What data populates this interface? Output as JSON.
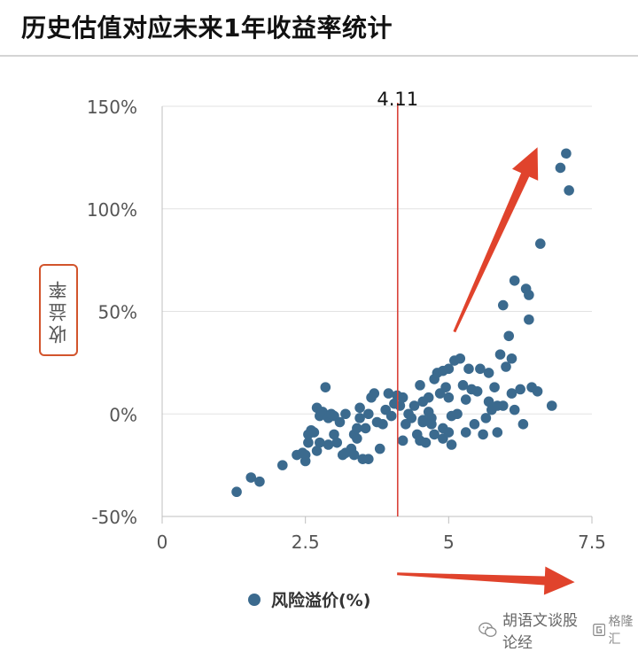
{
  "title": "历史估值对应未来1年收益率统计",
  "watermark": {
    "text": "胡语文谈股论经",
    "logo_text": "格隆汇"
  },
  "chart_data": {
    "type": "scatter",
    "title": "历史估值对应未来1年收益率统计",
    "xlabel": "风险溢价(%)",
    "ylabel": "收益率",
    "xlim": [
      0,
      7.5
    ],
    "ylim": [
      -50,
      150
    ],
    "x_ticks": [
      "0",
      "2.5",
      "5",
      "7.5"
    ],
    "y_ticks": [
      "-50%",
      "0%",
      "50%",
      "100%",
      "150%"
    ],
    "legend": {
      "position": "bottom",
      "label": "风险溢价(%)"
    },
    "marker_color": "#3b6a8e",
    "reference_line": {
      "x": 4.11,
      "label": "4.11",
      "color": "#d9433a"
    },
    "annotation_arrows": [
      {
        "from": [
          5.1,
          40
        ],
        "to": [
          6.55,
          130
        ],
        "color": "#e0432c"
      },
      {
        "from": [
          4.1,
          -78
        ],
        "to": [
          7.2,
          -82
        ],
        "color": "#e0432c"
      }
    ],
    "series": [
      {
        "name": "风险溢价(%)",
        "points": [
          [
            1.3,
            -38
          ],
          [
            1.55,
            -31
          ],
          [
            1.7,
            -33
          ],
          [
            2.1,
            -25
          ],
          [
            2.35,
            -20
          ],
          [
            2.45,
            -19
          ],
          [
            2.5,
            -23
          ],
          [
            2.55,
            -14
          ],
          [
            2.5,
            -20
          ],
          [
            2.55,
            -10
          ],
          [
            2.6,
            -8
          ],
          [
            2.65,
            -9
          ],
          [
            2.7,
            -18
          ],
          [
            2.75,
            -14
          ],
          [
            2.7,
            3
          ],
          [
            2.75,
            -1
          ],
          [
            2.8,
            1
          ],
          [
            2.85,
            13
          ],
          [
            2.9,
            -2
          ],
          [
            2.95,
            0
          ],
          [
            3.0,
            -10
          ],
          [
            3.0,
            -1
          ],
          [
            3.05,
            -14
          ],
          [
            3.1,
            -4
          ],
          [
            3.15,
            -20
          ],
          [
            3.2,
            -19
          ],
          [
            3.2,
            0
          ],
          [
            3.3,
            -17
          ],
          [
            3.35,
            -20
          ],
          [
            3.35,
            -10
          ],
          [
            3.4,
            -12
          ],
          [
            3.4,
            -7
          ],
          [
            3.45,
            -2
          ],
          [
            3.45,
            3
          ],
          [
            3.5,
            -22
          ],
          [
            3.55,
            -7
          ],
          [
            3.6,
            0
          ],
          [
            3.65,
            8
          ],
          [
            3.7,
            10
          ],
          [
            3.8,
            -17
          ],
          [
            3.85,
            -5
          ],
          [
            3.9,
            2
          ],
          [
            3.95,
            10
          ],
          [
            4.0,
            -1
          ],
          [
            4.05,
            5
          ],
          [
            4.1,
            9
          ],
          [
            4.15,
            4
          ],
          [
            4.2,
            8
          ],
          [
            4.2,
            -13
          ],
          [
            4.25,
            -5
          ],
          [
            4.3,
            0
          ],
          [
            4.35,
            -2
          ],
          [
            4.4,
            4
          ],
          [
            4.45,
            -10
          ],
          [
            4.5,
            -13
          ],
          [
            4.55,
            -4
          ],
          [
            4.6,
            -14
          ],
          [
            4.65,
            8
          ],
          [
            4.7,
            -2
          ],
          [
            4.75,
            -10
          ],
          [
            4.5,
            14
          ],
          [
            4.55,
            -3
          ],
          [
            4.55,
            6
          ],
          [
            4.65,
            1
          ],
          [
            4.7,
            -5
          ],
          [
            4.75,
            17
          ],
          [
            4.8,
            20
          ],
          [
            4.85,
            10
          ],
          [
            4.9,
            -7
          ],
          [
            4.9,
            21
          ],
          [
            4.95,
            13
          ],
          [
            5.0,
            -9
          ],
          [
            5.0,
            22
          ],
          [
            5.05,
            -15
          ],
          [
            5.05,
            -1
          ],
          [
            5.1,
            26
          ],
          [
            5.15,
            0
          ],
          [
            5.2,
            27
          ],
          [
            5.25,
            14
          ],
          [
            5.3,
            -9
          ],
          [
            5.3,
            7
          ],
          [
            5.35,
            22
          ],
          [
            5.4,
            12
          ],
          [
            5.45,
            -5
          ],
          [
            5.5,
            11
          ],
          [
            5.55,
            22
          ],
          [
            5.6,
            -10
          ],
          [
            5.65,
            -2
          ],
          [
            5.7,
            6
          ],
          [
            5.7,
            20
          ],
          [
            5.75,
            2
          ],
          [
            5.8,
            13
          ],
          [
            5.85,
            -9
          ],
          [
            5.85,
            4
          ],
          [
            5.9,
            29
          ],
          [
            5.95,
            53
          ],
          [
            5.95,
            4
          ],
          [
            6.0,
            23
          ],
          [
            6.05,
            38
          ],
          [
            6.1,
            27
          ],
          [
            6.1,
            10
          ],
          [
            6.15,
            65
          ],
          [
            6.15,
            2
          ],
          [
            6.25,
            12
          ],
          [
            6.3,
            -5
          ],
          [
            6.35,
            61
          ],
          [
            6.4,
            58
          ],
          [
            6.4,
            46
          ],
          [
            6.45,
            13
          ],
          [
            6.55,
            11
          ],
          [
            6.6,
            83
          ],
          [
            6.8,
            4
          ],
          [
            6.95,
            120
          ],
          [
            7.05,
            127
          ],
          [
            7.1,
            109
          ],
          [
            5.0,
            8
          ],
          [
            4.9,
            -12
          ],
          [
            3.75,
            -4
          ],
          [
            3.6,
            -22
          ],
          [
            2.9,
            -15
          ]
        ]
      }
    ]
  }
}
